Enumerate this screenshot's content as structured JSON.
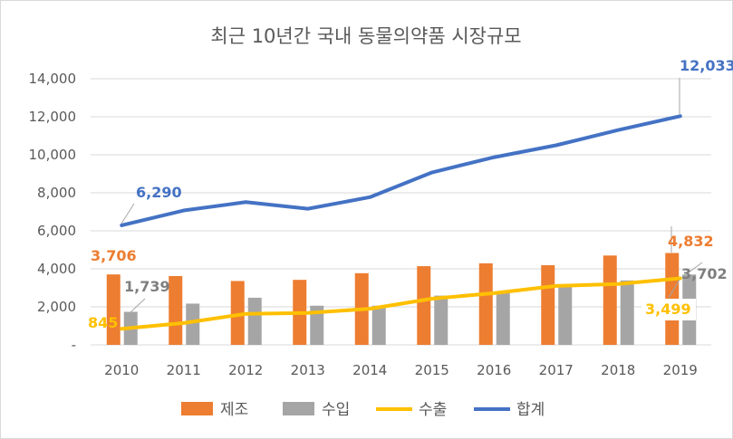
{
  "chart_data": {
    "type": "bar",
    "title": "최근 10년간 국내 동물의약품 시장규모",
    "categories": [
      "2010",
      "2011",
      "2012",
      "2013",
      "2014",
      "2015",
      "2016",
      "2017",
      "2018",
      "2019"
    ],
    "ylim": [
      0,
      14000
    ],
    "yticks": [
      0,
      2000,
      4000,
      6000,
      8000,
      10000,
      12000,
      14000
    ],
    "ytick_labels": [
      "-",
      "2,000",
      "4,000",
      "6,000",
      "8,000",
      "10,000",
      "12,000",
      "14,000"
    ],
    "grid": true,
    "legend_placement": "bottom",
    "series": [
      {
        "name": "제조",
        "kind": "bar",
        "color": "#ED7D31",
        "values": [
          3706,
          3620,
          3360,
          3420,
          3770,
          4140,
          4290,
          4190,
          4700,
          4832
        ]
      },
      {
        "name": "수입",
        "kind": "bar",
        "color": "#A5A5A5",
        "values": [
          1739,
          2170,
          2480,
          2060,
          2060,
          2590,
          2750,
          3150,
          3390,
          3702
        ]
      },
      {
        "name": "수출",
        "kind": "line",
        "color": "#FFC000",
        "values": [
          845,
          1150,
          1630,
          1680,
          1900,
          2430,
          2720,
          3100,
          3200,
          3499
        ]
      },
      {
        "name": "합계",
        "kind": "line",
        "color": "#4472C4",
        "values": [
          6290,
          7070,
          7510,
          7160,
          7770,
          9070,
          9870,
          10500,
          11300,
          12033
        ]
      }
    ],
    "data_labels": [
      {
        "series": "합계",
        "category": "2010",
        "text": "6,290"
      },
      {
        "series": "합계",
        "category": "2019",
        "text": "12,033"
      },
      {
        "series": "제조",
        "category": "2010",
        "text": "3,706"
      },
      {
        "series": "제조",
        "category": "2019",
        "text": "4,832"
      },
      {
        "series": "수입",
        "category": "2010",
        "text": "1,739"
      },
      {
        "series": "수입",
        "category": "2019",
        "text": "3,702"
      },
      {
        "series": "수출",
        "category": "2010",
        "text": "845"
      },
      {
        "series": "수출",
        "category": "2019",
        "text": "3,499"
      }
    ]
  }
}
